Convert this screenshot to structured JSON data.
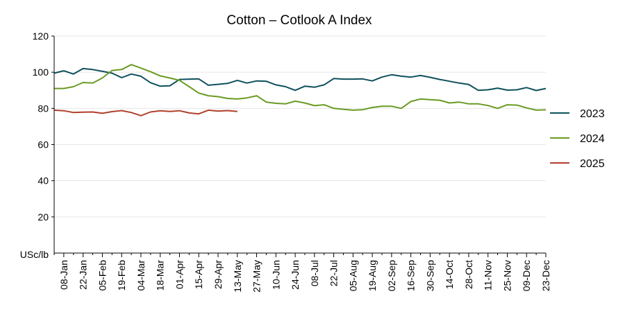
{
  "chart_data": {
    "type": "line",
    "title": "Cotton – Cotlook A Index",
    "ylabel": "USc/lb",
    "xlabel": "",
    "ylim": [
      0,
      120
    ],
    "yticks": [
      20,
      40,
      60,
      80,
      100,
      120
    ],
    "grid": true,
    "legend": "right",
    "x_ticks": [
      "08-Jan",
      "22-Jan",
      "05-Feb",
      "19-Feb",
      "04-Mar",
      "18-Mar",
      "01-Apr",
      "15-Apr",
      "29-Apr",
      "13-May",
      "27-May",
      "10-Jun",
      "24-Jun",
      "08-Jul",
      "22-Jul",
      "05-Aug",
      "19-Aug",
      "02-Sep",
      "16-Sep",
      "30-Sep",
      "14-Oct",
      "28-Oct",
      "11-Nov",
      "25-Nov",
      "09-Dec",
      "23-Dec"
    ],
    "series": [
      {
        "name": "2023",
        "color": "#0d4f5c",
        "values": [
          99.5,
          100.8,
          99.0,
          102.0,
          101.5,
          100.5,
          99.5,
          97.0,
          99.0,
          97.8,
          94.2,
          92.3,
          92.5,
          96.0,
          96.2,
          96.3,
          92.8,
          93.3,
          93.8,
          95.5,
          94.0,
          95.2,
          95.0,
          93.0,
          92.0,
          90.0,
          92.3,
          91.7,
          93.0,
          96.5,
          96.2,
          96.2,
          96.3,
          95.2,
          97.3,
          98.6,
          97.8,
          97.3,
          98.2,
          97.2,
          96.0,
          95.0,
          94.0,
          93.2,
          90.0,
          90.3,
          91.2,
          90.1,
          90.3,
          91.5,
          89.9,
          91.0
        ]
      },
      {
        "name": "2024",
        "color": "#6a9a22",
        "values": [
          91.0,
          91.0,
          92.0,
          94.3,
          94.0,
          96.8,
          101.0,
          101.5,
          104.2,
          102.3,
          100.3,
          98.0,
          96.8,
          95.5,
          92.0,
          88.5,
          87.0,
          86.5,
          85.5,
          85.2,
          85.8,
          87.0,
          83.5,
          82.8,
          82.5,
          84.0,
          83.0,
          81.5,
          82.0,
          80.0,
          79.5,
          79.0,
          79.3,
          80.5,
          81.2,
          81.2,
          80.0,
          83.8,
          85.2,
          84.8,
          84.5,
          83.0,
          83.5,
          82.5,
          82.5,
          81.6,
          80.0,
          82.0,
          81.8,
          80.3,
          79.0,
          79.2
        ]
      },
      {
        "name": "2025",
        "color": "#b0402a",
        "values": [
          79.0,
          78.7,
          77.7,
          77.9,
          78.0,
          77.3,
          78.2,
          78.8,
          77.7,
          76.0,
          78.0,
          78.7,
          78.3,
          78.7,
          77.5,
          77.0,
          79.0,
          78.5,
          78.8,
          78.3
        ]
      }
    ]
  }
}
